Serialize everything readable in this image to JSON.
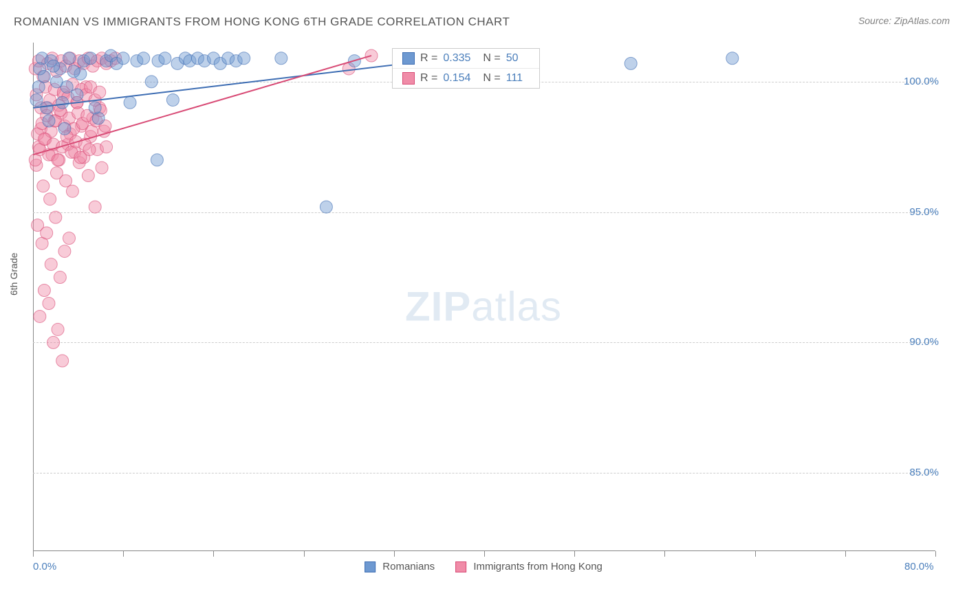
{
  "title": "ROMANIAN VS IMMIGRANTS FROM HONG KONG 6TH GRADE CORRELATION CHART",
  "source": "Source: ZipAtlas.com",
  "ylabel": "6th Grade",
  "watermark_bold": "ZIP",
  "watermark_light": "atlas",
  "chart": {
    "type": "scatter",
    "background_color": "#ffffff",
    "grid_color": "#cccccc",
    "axis_color": "#888888",
    "tick_label_color": "#4a7ebb",
    "xlim": [
      0,
      80
    ],
    "ylim": [
      82,
      101.5
    ],
    "xticks": [
      0,
      8,
      16,
      24,
      32,
      40,
      48,
      56,
      64,
      72,
      80
    ],
    "xtick_labels": [
      "0.0%",
      "",
      "",
      "",
      "",
      "",
      "",
      "",
      "",
      "",
      "80.0%"
    ],
    "yticks": [
      85,
      90,
      95,
      100
    ],
    "ytick_labels": [
      "85.0%",
      "90.0%",
      "95.0%",
      "100.0%"
    ],
    "marker_radius": 9,
    "marker_opacity": 0.45,
    "line_width": 2,
    "series": [
      {
        "name": "Romanians",
        "fill_color": "#6e99d1",
        "stroke_color": "#3d6db3",
        "R": 0.335,
        "N": 50,
        "trend": {
          "x1": 0,
          "y1": 99.0,
          "x2": 35,
          "y2": 100.8
        },
        "points": [
          [
            0.8,
            100.9
          ],
          [
            1.2,
            99.0
          ],
          [
            1.6,
            100.8
          ],
          [
            2.1,
            100.0
          ],
          [
            2.8,
            98.2
          ],
          [
            3.2,
            100.9
          ],
          [
            3.9,
            99.5
          ],
          [
            4.5,
            100.8
          ],
          [
            5.1,
            100.9
          ],
          [
            5.8,
            98.6
          ],
          [
            6.5,
            100.8
          ],
          [
            6.9,
            101.0
          ],
          [
            7.4,
            100.7
          ],
          [
            8.0,
            100.9
          ],
          [
            8.6,
            99.2
          ],
          [
            9.2,
            100.8
          ],
          [
            9.8,
            100.9
          ],
          [
            10.5,
            100.0
          ],
          [
            11.1,
            100.8
          ],
          [
            11.7,
            100.9
          ],
          [
            12.4,
            99.3
          ],
          [
            12.8,
            100.7
          ],
          [
            13.5,
            100.9
          ],
          [
            13.9,
            100.8
          ],
          [
            14.6,
            100.9
          ],
          [
            15.2,
            100.8
          ],
          [
            16.0,
            100.9
          ],
          [
            16.6,
            100.7
          ],
          [
            17.3,
            100.9
          ],
          [
            18.0,
            100.8
          ],
          [
            18.7,
            100.9
          ],
          [
            11.0,
            97.0
          ],
          [
            22.0,
            100.9
          ],
          [
            26.0,
            95.2
          ],
          [
            28.5,
            100.8
          ],
          [
            35.0,
            100.9
          ],
          [
            53.0,
            100.7
          ],
          [
            62.0,
            100.9
          ],
          [
            0.5,
            99.8
          ],
          [
            1.0,
            100.2
          ],
          [
            1.4,
            98.5
          ],
          [
            2.4,
            100.5
          ],
          [
            3.0,
            99.8
          ],
          [
            4.2,
            100.3
          ],
          [
            5.5,
            99.0
          ],
          [
            1.8,
            100.6
          ],
          [
            2.6,
            99.2
          ],
          [
            3.6,
            100.4
          ],
          [
            0.3,
            99.3
          ],
          [
            0.6,
            100.5
          ]
        ]
      },
      {
        "name": "Immigrants from Hong Kong",
        "fill_color": "#f08ca8",
        "stroke_color": "#d84a75",
        "R": 0.154,
        "N": 111,
        "trend": {
          "x1": 0,
          "y1": 97.2,
          "x2": 30,
          "y2": 101.0
        },
        "points": [
          [
            0.3,
            96.8
          ],
          [
            0.5,
            97.5
          ],
          [
            0.7,
            98.2
          ],
          [
            0.9,
            96.0
          ],
          [
            1.1,
            97.8
          ],
          [
            1.3,
            99.0
          ],
          [
            1.5,
            95.5
          ],
          [
            1.7,
            97.2
          ],
          [
            1.9,
            98.5
          ],
          [
            2.1,
            96.5
          ],
          [
            2.3,
            97.0
          ],
          [
            2.5,
            98.8
          ],
          [
            2.7,
            99.5
          ],
          [
            2.9,
            96.2
          ],
          [
            3.1,
            97.6
          ],
          [
            3.3,
            98.0
          ],
          [
            3.5,
            95.8
          ],
          [
            3.7,
            97.3
          ],
          [
            3.9,
            99.2
          ],
          [
            4.1,
            96.9
          ],
          [
            4.3,
            98.3
          ],
          [
            4.5,
            97.1
          ],
          [
            4.7,
            99.8
          ],
          [
            4.9,
            96.4
          ],
          [
            5.1,
            97.9
          ],
          [
            5.3,
            98.6
          ],
          [
            5.5,
            95.2
          ],
          [
            5.7,
            97.4
          ],
          [
            5.9,
            99.0
          ],
          [
            6.1,
            96.7
          ],
          [
            6.3,
            98.1
          ],
          [
            6.5,
            97.5
          ],
          [
            0.4,
            94.5
          ],
          [
            0.8,
            93.8
          ],
          [
            1.2,
            94.2
          ],
          [
            1.6,
            93.0
          ],
          [
            2.0,
            94.8
          ],
          [
            2.4,
            92.5
          ],
          [
            2.8,
            93.5
          ],
          [
            3.2,
            94.0
          ],
          [
            1.0,
            92.0
          ],
          [
            1.4,
            91.5
          ],
          [
            0.6,
            91.0
          ],
          [
            2.2,
            90.5
          ],
          [
            1.8,
            90.0
          ],
          [
            2.6,
            89.3
          ],
          [
            0.2,
            100.5
          ],
          [
            0.5,
            100.8
          ],
          [
            0.9,
            100.2
          ],
          [
            1.3,
            100.7
          ],
          [
            1.7,
            100.9
          ],
          [
            2.1,
            100.4
          ],
          [
            2.5,
            100.8
          ],
          [
            2.9,
            100.6
          ],
          [
            3.3,
            100.9
          ],
          [
            3.7,
            100.5
          ],
          [
            4.1,
            100.8
          ],
          [
            4.5,
            100.7
          ],
          [
            4.9,
            100.9
          ],
          [
            5.3,
            100.6
          ],
          [
            5.7,
            100.8
          ],
          [
            6.1,
            100.9
          ],
          [
            6.5,
            100.7
          ],
          [
            6.9,
            100.8
          ],
          [
            7.3,
            100.9
          ],
          [
            0.3,
            99.5
          ],
          [
            0.7,
            99.0
          ],
          [
            1.1,
            99.8
          ],
          [
            1.5,
            99.3
          ],
          [
            1.9,
            99.7
          ],
          [
            2.3,
            99.1
          ],
          [
            2.7,
            99.6
          ],
          [
            3.1,
            99.4
          ],
          [
            3.5,
            99.9
          ],
          [
            3.9,
            99.2
          ],
          [
            4.3,
            99.7
          ],
          [
            4.7,
            99.5
          ],
          [
            5.1,
            99.8
          ],
          [
            5.5,
            99.3
          ],
          [
            5.9,
            99.6
          ],
          [
            28.0,
            100.5
          ],
          [
            30.0,
            101.0
          ],
          [
            0.4,
            98.0
          ],
          [
            0.8,
            98.4
          ],
          [
            1.2,
            98.7
          ],
          [
            1.6,
            98.1
          ],
          [
            2.0,
            98.5
          ],
          [
            2.4,
            98.9
          ],
          [
            2.8,
            98.3
          ],
          [
            3.2,
            98.6
          ],
          [
            3.6,
            98.2
          ],
          [
            4.0,
            98.8
          ],
          [
            4.4,
            98.4
          ],
          [
            4.8,
            98.7
          ],
          [
            5.2,
            98.1
          ],
          [
            5.6,
            98.5
          ],
          [
            6.0,
            98.9
          ],
          [
            6.4,
            98.3
          ],
          [
            0.2,
            97.0
          ],
          [
            0.6,
            97.4
          ],
          [
            1.0,
            97.8
          ],
          [
            1.4,
            97.2
          ],
          [
            1.8,
            97.6
          ],
          [
            2.2,
            97.0
          ],
          [
            2.6,
            97.5
          ],
          [
            3.0,
            97.9
          ],
          [
            3.4,
            97.3
          ],
          [
            3.8,
            97.7
          ],
          [
            4.2,
            97.1
          ],
          [
            4.6,
            97.6
          ],
          [
            5.0,
            97.4
          ]
        ]
      }
    ]
  },
  "legend": {
    "series1_label": "Romanians",
    "series2_label": "Immigrants from Hong Kong"
  },
  "stats_labels": {
    "r": "R =",
    "n": "N ="
  }
}
